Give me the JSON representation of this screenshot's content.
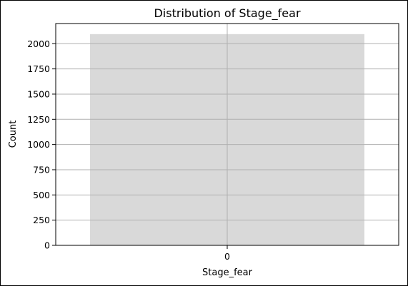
{
  "chart_data": {
    "type": "bar",
    "title": "Distribution of Stage_fear",
    "xlabel": "Stage_fear",
    "ylabel": "Count",
    "categories": [
      "0"
    ],
    "values": [
      2095
    ],
    "ylim": [
      0,
      2200
    ],
    "yticks": [
      "0",
      "250",
      "500",
      "750",
      "1000",
      "1250",
      "1500",
      "1750",
      "2000"
    ],
    "grid": true,
    "bar_color": "#d9d9d9",
    "grid_color": "#b0b0b0"
  }
}
